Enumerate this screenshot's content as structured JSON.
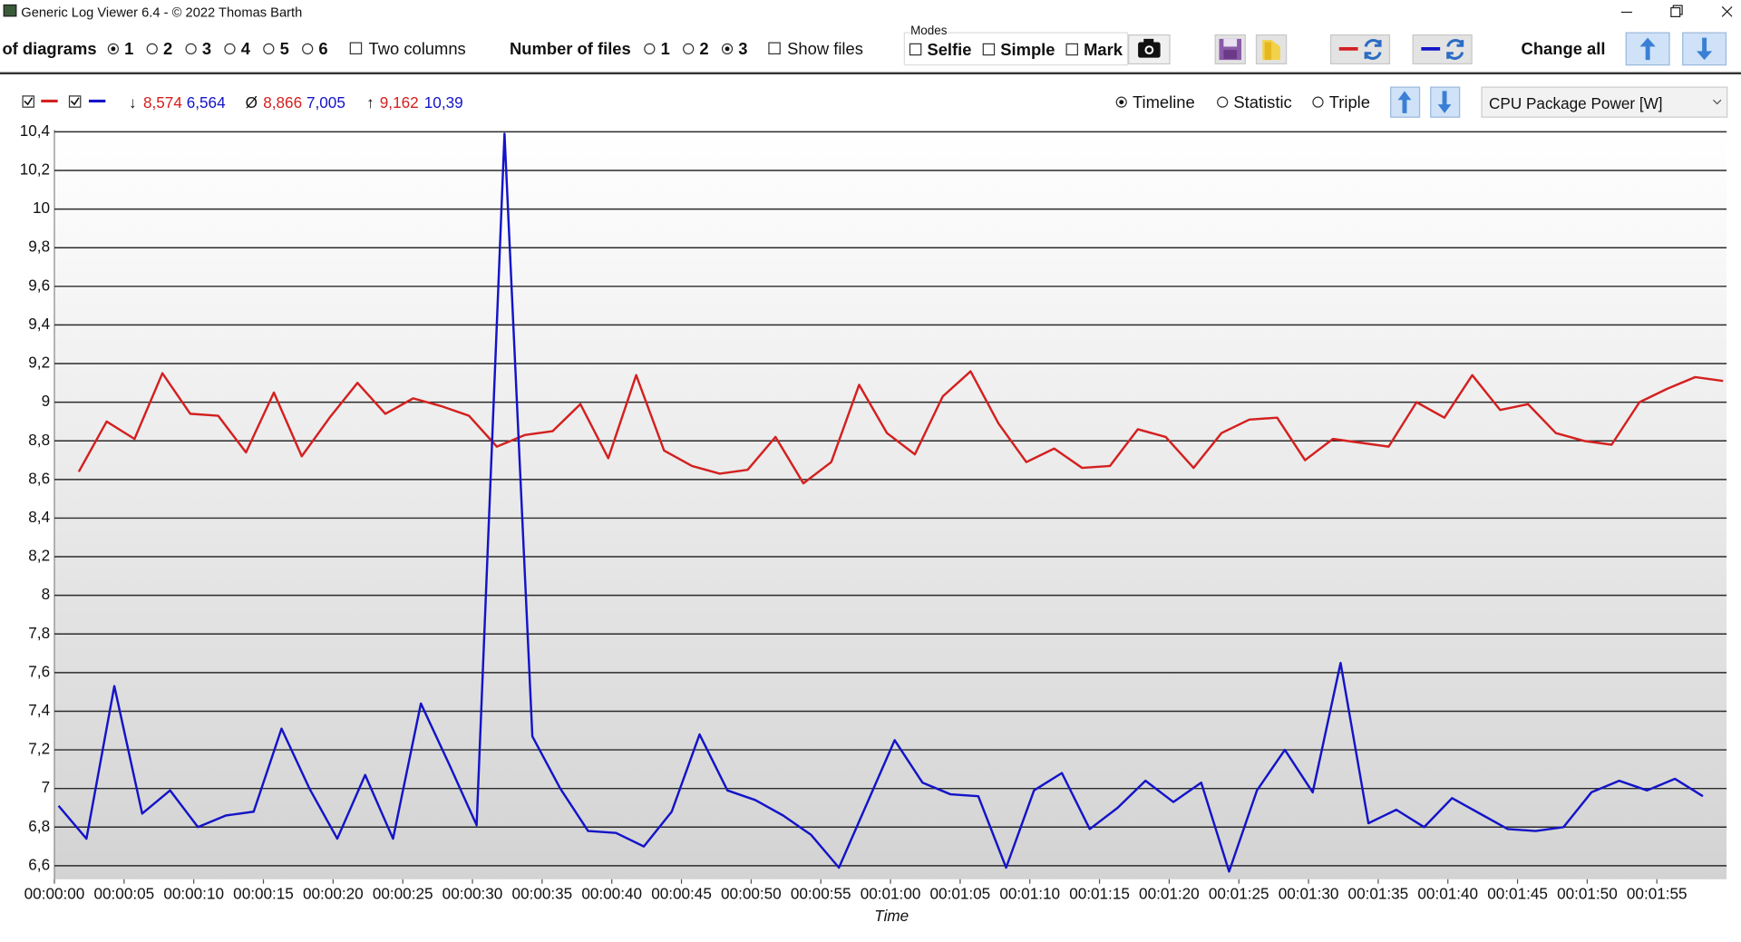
{
  "window": {
    "title": "Generic Log Viewer 6.4 - © 2022 Thomas Barth"
  },
  "toolbar": {
    "diagrams_label": "of diagrams",
    "diagram_options": [
      "1",
      "2",
      "3",
      "4",
      "5",
      "6"
    ],
    "diagram_selected": 0,
    "two_columns": "Two columns",
    "files_label": "Number of files",
    "file_options": [
      "1",
      "2",
      "3"
    ],
    "file_selected": 2,
    "show_files": "Show files",
    "modes_label": "Modes",
    "modes": [
      "Selfie",
      "Simple",
      "Mark"
    ],
    "change_all": "Change all"
  },
  "stats_bar": {
    "min_symbol": "↓",
    "min": [
      "8,574",
      "6,564"
    ],
    "avg_symbol": "Ø",
    "avg": [
      "8,866",
      "7,005"
    ],
    "max_symbol": "↑",
    "max": [
      "9,162",
      "10,39"
    ],
    "views": [
      "Timeline",
      "Statistic",
      "Triple"
    ],
    "view_selected": 0,
    "channel": "CPU Package Power [W]"
  },
  "chart_data": {
    "type": "line",
    "x_label": "Time",
    "grid": true,
    "xlim": [
      0,
      120
    ],
    "ylim": [
      6.53,
      10.41
    ],
    "xticks": [
      {
        "value": 0,
        "label": "00:00:00"
      },
      {
        "value": 5,
        "label": "00:00:05"
      },
      {
        "value": 10,
        "label": "00:00:10"
      },
      {
        "value": 15,
        "label": "00:00:15"
      },
      {
        "value": 20,
        "label": "00:00:20"
      },
      {
        "value": 25,
        "label": "00:00:25"
      },
      {
        "value": 30,
        "label": "00:00:30"
      },
      {
        "value": 35,
        "label": "00:00:35"
      },
      {
        "value": 40,
        "label": "00:00:40"
      },
      {
        "value": 45,
        "label": "00:00:45"
      },
      {
        "value": 50,
        "label": "00:00:50"
      },
      {
        "value": 55,
        "label": "00:00:55"
      },
      {
        "value": 60,
        "label": "00:01:00"
      },
      {
        "value": 65,
        "label": "00:01:05"
      },
      {
        "value": 70,
        "label": "00:01:10"
      },
      {
        "value": 75,
        "label": "00:01:15"
      },
      {
        "value": 80,
        "label": "00:01:20"
      },
      {
        "value": 85,
        "label": "00:01:25"
      },
      {
        "value": 90,
        "label": "00:01:30"
      },
      {
        "value": 95,
        "label": "00:01:35"
      },
      {
        "value": 100,
        "label": "00:01:40"
      },
      {
        "value": 105,
        "label": "00:01:45"
      },
      {
        "value": 110,
        "label": "00:01:50"
      },
      {
        "value": 115,
        "label": "00:01:55"
      }
    ],
    "yticks": [
      {
        "value": 6.6,
        "label": "6,6"
      },
      {
        "value": 6.8,
        "label": "6,8"
      },
      7,
      {
        "value": 7.2,
        "label": "7,2"
      },
      {
        "value": 7.4,
        "label": "7,4"
      },
      {
        "value": 7.6,
        "label": "7,6"
      },
      {
        "value": 7.8,
        "label": "7,8"
      },
      8,
      {
        "value": 8.2,
        "label": "8,2"
      },
      {
        "value": 8.4,
        "label": "8,4"
      },
      {
        "value": 8.6,
        "label": "8,6"
      },
      {
        "value": 8.8,
        "label": "8,8"
      },
      9,
      {
        "value": 9.2,
        "label": "9,2"
      },
      {
        "value": 9.4,
        "label": "9,4"
      },
      {
        "value": 9.6,
        "label": "9,6"
      },
      {
        "value": 9.8,
        "label": "9,8"
      },
      10,
      {
        "value": 10.2,
        "label": "10,2"
      },
      {
        "value": 10.4,
        "label": "10,4"
      }
    ],
    "series": [
      {
        "color": "#d42020",
        "x": [
          1.75,
          3.75,
          5.75,
          7.75,
          9.75,
          11.75,
          13.75,
          15.75,
          17.75,
          19.75,
          21.75,
          23.75,
          25.75,
          27.75,
          29.75,
          31.75,
          33.75,
          35.75,
          37.75,
          39.75,
          41.75,
          43.75,
          45.75,
          47.75,
          49.75,
          51.75,
          53.75,
          55.75,
          57.75,
          59.75,
          61.75,
          63.75,
          65.75,
          67.75,
          69.75,
          71.75,
          73.75,
          75.75,
          77.75,
          79.75,
          81.75,
          83.75,
          85.75,
          87.75,
          89.75,
          91.75,
          93.75,
          95.75,
          97.75,
          99.75,
          101.75,
          103.75,
          105.75,
          107.75,
          109.75,
          111.75,
          113.75,
          115.75,
          117.75,
          119.75
        ],
        "values": [
          8.64,
          8.9,
          8.81,
          9.15,
          8.94,
          8.93,
          8.74,
          9.05,
          8.72,
          8.92,
          9.1,
          8.94,
          9.02,
          8.98,
          8.93,
          8.77,
          8.83,
          8.85,
          8.99,
          8.71,
          9.14,
          8.75,
          8.67,
          8.63,
          8.65,
          8.82,
          8.58,
          8.69,
          9.09,
          8.84,
          8.73,
          9.03,
          9.16,
          8.89,
          8.69,
          8.76,
          8.66,
          8.67,
          8.86,
          8.82,
          8.66,
          8.84,
          8.91,
          8.92,
          8.7,
          8.81,
          8.79,
          8.77,
          9.0,
          8.92,
          9.14,
          8.96,
          8.99,
          8.84,
          8.8,
          8.78,
          9.0,
          9.07,
          9.13,
          9.11
        ]
      },
      {
        "color": "#1414c8",
        "x": [
          0.3,
          2.3,
          4.3,
          6.3,
          8.3,
          10.3,
          12.3,
          14.3,
          16.3,
          18.3,
          20.3,
          22.3,
          24.3,
          26.3,
          28.3,
          30.3,
          32.3,
          34.3,
          36.3,
          38.3,
          40.3,
          42.3,
          44.3,
          46.3,
          48.3,
          50.3,
          52.3,
          54.3,
          56.3,
          58.3,
          60.3,
          62.3,
          64.3,
          66.3,
          68.3,
          70.3,
          72.3,
          74.3,
          76.3,
          78.3,
          80.3,
          82.3,
          84.3,
          86.3,
          88.3,
          90.3,
          92.3,
          94.3,
          96.3,
          98.3,
          100.3,
          102.3,
          104.3,
          106.3,
          108.3,
          110.3,
          112.3,
          114.3,
          116.3,
          118.3
        ],
        "values": [
          6.91,
          6.74,
          7.53,
          6.87,
          6.99,
          6.8,
          6.86,
          6.88,
          7.31,
          7.0,
          6.74,
          7.07,
          6.74,
          7.44,
          7.13,
          6.81,
          10.39,
          7.27,
          7.0,
          6.78,
          6.77,
          6.7,
          6.88,
          7.28,
          6.99,
          6.94,
          6.86,
          6.76,
          6.59,
          6.92,
          7.25,
          7.03,
          6.97,
          6.96,
          6.59,
          6.99,
          7.08,
          6.79,
          6.9,
          7.04,
          6.93,
          7.03,
          6.57,
          6.99,
          7.2,
          6.98,
          7.65,
          6.82,
          6.89,
          6.8,
          6.95,
          6.87,
          6.79,
          6.78,
          6.8,
          6.98,
          7.04,
          6.99,
          7.05,
          6.96
        ]
      }
    ]
  }
}
